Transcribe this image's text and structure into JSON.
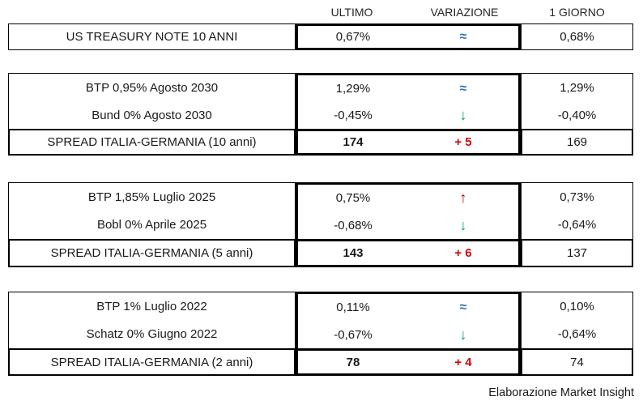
{
  "header": {
    "ultimo": "ULTIMO",
    "variazione": "VARIAZIONE",
    "giorno": "1 GIORNO"
  },
  "colors": {
    "border": "#000000",
    "text": "#1a1a1a",
    "flat_blue": "#2e75b6",
    "down_green": "#00a651",
    "up_red": "#c00000",
    "plus_red": "#d40404"
  },
  "sections": [
    {
      "rows": [
        {
          "label": "US TREASURY NOTE 10 ANNI",
          "ultimo": "0,67%",
          "variazione": "≈",
          "dir": "flat",
          "giorno": "0,68%"
        }
      ]
    },
    {
      "rows": [
        {
          "label": "BTP 0,95% Agosto 2030",
          "ultimo": "1,29%",
          "variazione": "≈",
          "dir": "flat",
          "giorno": "1,29%"
        },
        {
          "label": "Bund 0% Agosto 2030",
          "ultimo": "-0,45%",
          "variazione": "↓",
          "dir": "down",
          "giorno": "-0,40%"
        }
      ],
      "spread": {
        "label": "SPREAD ITALIA-GERMANIA (10 anni)",
        "ultimo": "174",
        "variazione": "+ 5",
        "dir": "plus",
        "giorno": "169"
      }
    },
    {
      "rows": [
        {
          "label": "BTP 1,85% Luglio 2025",
          "ultimo": "0,75%",
          "variazione": "↑",
          "dir": "up",
          "giorno": "0,73%"
        },
        {
          "label": "Bobl 0% Aprile 2025",
          "ultimo": "-0,68%",
          "variazione": "↓",
          "dir": "down",
          "giorno": "-0,64%"
        }
      ],
      "spread": {
        "label": "SPREAD ITALIA-GERMANIA (5 anni)",
        "ultimo": "143",
        "variazione": "+ 6",
        "dir": "plus",
        "giorno": "137"
      }
    },
    {
      "rows": [
        {
          "label": "BTP 1% Luglio 2022",
          "ultimo": "0,11%",
          "variazione": "≈",
          "dir": "flat",
          "giorno": "0,10%"
        },
        {
          "label": "Schatz 0% Giugno 2022",
          "ultimo": "-0,67%",
          "variazione": "↓",
          "dir": "down",
          "giorno": "-0,64%"
        }
      ],
      "spread": {
        "label": "SPREAD ITALIA-GERMANIA (2 anni)",
        "ultimo": "78",
        "variazione": "+ 4",
        "dir": "plus",
        "giorno": "74"
      }
    }
  ],
  "footer": "Elaborazione Market Insight",
  "chart_data": {
    "type": "table",
    "columns": [
      "",
      "ULTIMO",
      "VARIAZIONE",
      "1 GIORNO"
    ],
    "rows": [
      [
        "US TREASURY NOTE 10 ANNI",
        "0,67%",
        "≈",
        "0,68%"
      ],
      [
        "BTP 0,95% Agosto 2030",
        "1,29%",
        "≈",
        "1,29%"
      ],
      [
        "Bund 0% Agosto 2030",
        "-0,45%",
        "↓",
        "-0,40%"
      ],
      [
        "SPREAD ITALIA-GERMANIA (10 anni)",
        "174",
        "+ 5",
        "169"
      ],
      [
        "BTP 1,85% Luglio 2025",
        "0,75%",
        "↑",
        "0,73%"
      ],
      [
        "Bobl 0% Aprile 2025",
        "-0,68%",
        "↓",
        "-0,64%"
      ],
      [
        "SPREAD ITALIA-GERMANIA (5 anni)",
        "143",
        "+ 6",
        "137"
      ],
      [
        "BTP 1% Luglio 2022",
        "0,11%",
        "≈",
        "0,10%"
      ],
      [
        "Schatz 0% Giugno 2022",
        "-0,67%",
        "↓",
        "-0,64%"
      ],
      [
        "SPREAD ITALIA-GERMANIA (2 anni)",
        "78",
        "+ 4",
        "74"
      ]
    ],
    "source": "Elaborazione Market Insight"
  }
}
